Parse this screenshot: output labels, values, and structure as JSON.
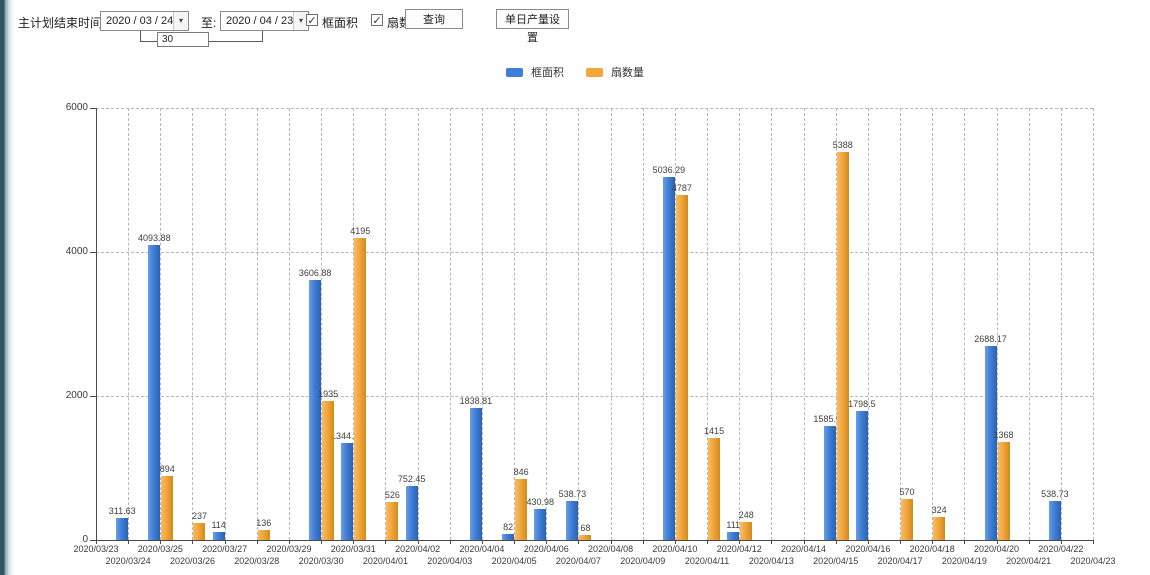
{
  "toolbar": {
    "label": "主计划结束时间:",
    "date_from": "2020 / 03 / 24",
    "to_label": "至:",
    "date_to": "2020 / 04 / 23",
    "days_value": "30",
    "checkbox_frame_area": "框面积",
    "checkbox_fan_count": "扇数量",
    "check_glyph": "✓",
    "arrow_glyph": "▾",
    "query_button": "查询",
    "daily_output_button": "单日产量设置"
  },
  "colors": {
    "blue": "#3f7fd9",
    "orange": "#f2a63b",
    "axis": "#4a4a4a",
    "grid": "#b7b7b7"
  },
  "chart_data": {
    "type": "bar",
    "title": "",
    "xlabel": "",
    "ylabel": "",
    "ylim": [
      0,
      6000
    ],
    "yticks": [
      0,
      2000,
      4000,
      6000
    ],
    "grid": "dashed",
    "legend_position": "top-center",
    "categories": [
      "2020/03/23",
      "2020/03/24",
      "2020/03/25",
      "2020/03/26",
      "2020/03/27",
      "2020/03/28",
      "2020/03/29",
      "2020/03/30",
      "2020/03/31",
      "2020/04/01",
      "2020/04/02",
      "2020/04/03",
      "2020/04/04",
      "2020/04/05",
      "2020/04/06",
      "2020/04/07",
      "2020/04/08",
      "2020/04/09",
      "2020/04/10",
      "2020/04/11",
      "2020/04/12",
      "2020/04/13",
      "2020/04/14",
      "2020/04/15",
      "2020/04/16",
      "2020/04/17",
      "2020/04/18",
      "2020/04/19",
      "2020/04/20",
      "2020/04/21",
      "2020/04/22",
      "2020/04/23"
    ],
    "series": [
      {
        "name": "框面积",
        "color": "#3f7fd9",
        "values": [
          null,
          311.63,
          4093.88,
          null,
          114,
          null,
          null,
          3606.88,
          1344.95,
          null,
          752.45,
          null,
          1838.81,
          82,
          430.98,
          538.73,
          null,
          null,
          5036.29,
          null,
          111,
          null,
          null,
          1585.96,
          1798.5,
          null,
          null,
          null,
          2688.17,
          null,
          538.73,
          null
        ]
      },
      {
        "name": "扇数量",
        "color": "#f2a63b",
        "values": [
          null,
          null,
          894,
          237,
          null,
          136,
          null,
          1935,
          4195,
          526,
          null,
          null,
          null,
          846,
          null,
          68,
          null,
          null,
          4787,
          1415,
          248,
          null,
          null,
          5388,
          null,
          570,
          324,
          null,
          1368,
          null,
          null,
          null
        ]
      }
    ]
  }
}
